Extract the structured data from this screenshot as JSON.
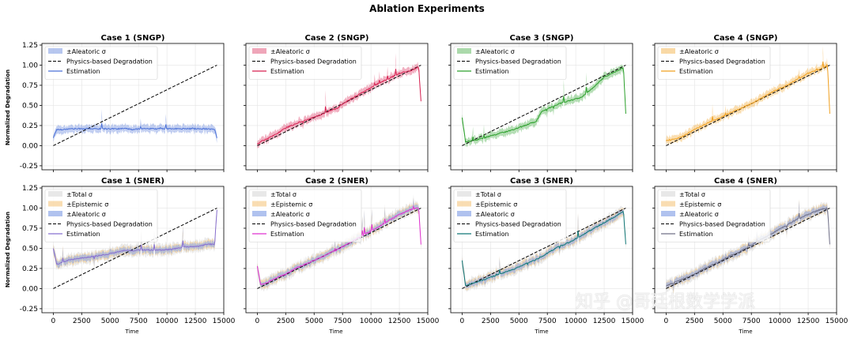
{
  "figure": {
    "title": "Ablation Experiments",
    "watermark": "知乎 @哥廷根数学学派",
    "ylabel": "Normalized Degradation",
    "xlabel": "Time"
  },
  "chart_data": [
    {
      "type": "line",
      "title": "Case 1 (SNGP)",
      "variant": "sngp",
      "case": 1,
      "color": "#4c72d8",
      "legend": [
        "±Aleatoric σ",
        "Physics-based Degradation",
        "Estimation"
      ],
      "xlim": [
        -1000,
        15000
      ],
      "ylim": [
        -0.3,
        1.27
      ],
      "xticks": [
        0,
        2500,
        5000,
        7500,
        10000,
        12500,
        15000
      ],
      "yticks": [
        -0.25,
        0.0,
        0.25,
        0.5,
        0.75,
        1.0,
        1.25
      ]
    },
    {
      "type": "line",
      "title": "Case 2 (SNGP)",
      "variant": "sngp",
      "case": 2,
      "color": "#d62050",
      "legend": [
        "±Aleatoric σ",
        "Physics-based Degradation",
        "Estimation"
      ],
      "xlim": [
        -1000,
        15000
      ],
      "ylim": [
        -0.3,
        1.27
      ],
      "xticks": [
        0,
        2500,
        5000,
        7500,
        10000,
        12500,
        15000
      ],
      "yticks": [
        -0.25,
        0.0,
        0.25,
        0.5,
        0.75,
        1.0,
        1.25
      ]
    },
    {
      "type": "line",
      "title": "Case 3 (SNGP)",
      "variant": "sngp",
      "case": 3,
      "color": "#2ca02c",
      "legend": [
        "±Aleatoric σ",
        "Physics-based Degradation",
        "Estimation"
      ],
      "xlim": [
        -1000,
        15000
      ],
      "ylim": [
        -0.3,
        1.27
      ],
      "xticks": [
        0,
        2500,
        5000,
        7500,
        10000,
        12500,
        15000
      ],
      "yticks": [
        -0.25,
        0.0,
        0.25,
        0.5,
        0.75,
        1.0,
        1.25
      ]
    },
    {
      "type": "line",
      "title": "Case 4 (SNGP)",
      "variant": "sngp",
      "case": 4,
      "color": "#f0a020",
      "legend": [
        "±Aleatoric σ",
        "Physics-based Degradation",
        "Estimation"
      ],
      "xlim": [
        -1000,
        15000
      ],
      "ylim": [
        -0.3,
        1.27
      ],
      "xticks": [
        0,
        2500,
        5000,
        7500,
        10000,
        12500,
        15000
      ],
      "yticks": [
        -0.25,
        0.0,
        0.25,
        0.5,
        0.75,
        1.0,
        1.25
      ]
    },
    {
      "type": "line",
      "title": "Case 1 (SNER)",
      "variant": "sner",
      "case": 1,
      "color": "#8870d0",
      "legend": [
        "±Total σ",
        "±Epistemic σ",
        "±Aleatoric σ",
        "Physics-based Degradation",
        "Estimation"
      ],
      "xlim": [
        -1000,
        15000
      ],
      "ylim": [
        -0.3,
        1.27
      ],
      "xticks": [
        0,
        2500,
        5000,
        7500,
        10000,
        12500,
        15000
      ],
      "yticks": [
        -0.25,
        0.0,
        0.25,
        0.5,
        0.75,
        1.0,
        1.25
      ]
    },
    {
      "type": "line",
      "title": "Case 2 (SNER)",
      "variant": "sner",
      "case": 2,
      "color": "#e030d0",
      "legend": [
        "±Total σ",
        "±Epistemic σ",
        "±Aleatoric σ",
        "Physics-based Degradation",
        "Estimation"
      ],
      "xlim": [
        -1000,
        15000
      ],
      "ylim": [
        -0.3,
        1.27
      ],
      "xticks": [
        0,
        2500,
        5000,
        7500,
        10000,
        12500,
        15000
      ],
      "yticks": [
        -0.25,
        0.0,
        0.25,
        0.5,
        0.75,
        1.0,
        1.25
      ]
    },
    {
      "type": "line",
      "title": "Case 3 (SNER)",
      "variant": "sner",
      "case": 3,
      "color": "#107878",
      "legend": [
        "±Total σ",
        "±Epistemic σ",
        "±Aleatoric σ",
        "Physics-based Degradation",
        "Estimation"
      ],
      "xlim": [
        -1000,
        15000
      ],
      "ylim": [
        -0.3,
        1.27
      ],
      "xticks": [
        0,
        2500,
        5000,
        7500,
        10000,
        12500,
        15000
      ],
      "yticks": [
        -0.25,
        0.0,
        0.25,
        0.5,
        0.75,
        1.0,
        1.25
      ]
    },
    {
      "type": "line",
      "title": "Case 4 (SNER)",
      "variant": "sner",
      "case": 4,
      "color": "#707088",
      "legend": [
        "±Total σ",
        "±Epistemic σ",
        "±Aleatoric σ",
        "Physics-based Degradation",
        "Estimation"
      ],
      "xlim": [
        -1000,
        15000
      ],
      "ylim": [
        -0.3,
        1.27
      ],
      "xticks": [
        0,
        2500,
        5000,
        7500,
        10000,
        12500,
        15000
      ],
      "yticks": [
        -0.25,
        0.0,
        0.25,
        0.5,
        0.75,
        1.0,
        1.25
      ]
    }
  ],
  "curves": {
    "t": [
      0,
      300,
      800,
      1500,
      2500,
      3500,
      4500,
      5500,
      6500,
      7000,
      7500,
      8500,
      9500,
      10500,
      11500,
      12500,
      13500,
      14200,
      14400
    ],
    "physics": {
      "x": [
        0,
        14400
      ],
      "y": [
        0.0,
        1.0
      ]
    },
    "sngp": {
      "1": [
        0.1,
        0.2,
        0.2,
        0.21,
        0.21,
        0.21,
        0.21,
        0.21,
        0.21,
        0.2,
        0.21,
        0.21,
        0.21,
        0.21,
        0.21,
        0.21,
        0.21,
        0.2,
        0.1
      ],
      "2": [
        0.02,
        0.05,
        0.08,
        0.13,
        0.22,
        0.28,
        0.33,
        0.38,
        0.44,
        0.46,
        0.52,
        0.6,
        0.68,
        0.76,
        0.83,
        0.9,
        0.93,
        0.98,
        0.55
      ],
      "3": [
        0.35,
        0.05,
        0.06,
        0.08,
        0.12,
        0.16,
        0.2,
        0.25,
        0.3,
        0.42,
        0.46,
        0.52,
        0.56,
        0.6,
        0.72,
        0.85,
        0.92,
        0.97,
        0.4
      ],
      "4": [
        0.06,
        0.07,
        0.08,
        0.12,
        0.2,
        0.27,
        0.33,
        0.4,
        0.46,
        0.49,
        0.52,
        0.6,
        0.68,
        0.74,
        0.82,
        0.9,
        0.95,
        0.99,
        0.4
      ]
    },
    "sner": {
      "1": [
        0.5,
        0.3,
        0.33,
        0.36,
        0.38,
        0.4,
        0.42,
        0.45,
        0.48,
        0.47,
        0.48,
        0.48,
        0.48,
        0.49,
        0.52,
        0.52,
        0.55,
        0.55,
        0.98
      ],
      "2": [
        0.28,
        0.05,
        0.07,
        0.12,
        0.18,
        0.26,
        0.32,
        0.38,
        0.45,
        0.48,
        0.52,
        0.6,
        0.68,
        0.75,
        0.84,
        0.92,
        0.98,
        1.0,
        0.55
      ],
      "3": [
        0.35,
        0.04,
        0.06,
        0.09,
        0.14,
        0.19,
        0.24,
        0.3,
        0.36,
        0.4,
        0.44,
        0.52,
        0.58,
        0.66,
        0.74,
        0.82,
        0.9,
        0.96,
        0.55
      ],
      "4": [
        0.03,
        0.05,
        0.08,
        0.12,
        0.18,
        0.26,
        0.32,
        0.4,
        0.46,
        0.5,
        0.54,
        0.62,
        0.7,
        0.78,
        0.86,
        0.92,
        0.98,
        1.0,
        0.55
      ]
    }
  },
  "colors": {
    "physics": "#000000",
    "aleatoric_sner": "#8fa8e8",
    "epistemic": "#f5c77e",
    "total": "#e8e8e8",
    "grid": "#e4e4e4"
  }
}
